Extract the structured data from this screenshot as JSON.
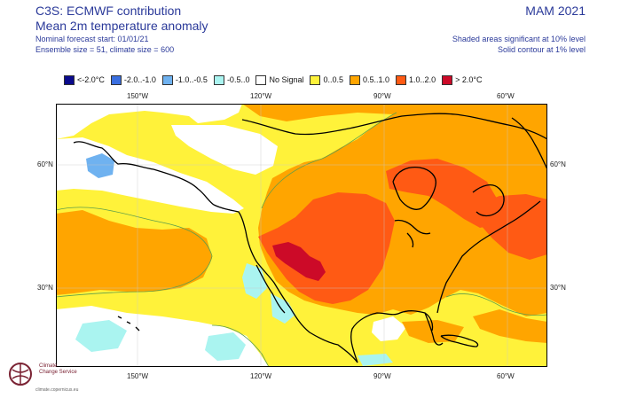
{
  "header": {
    "title_line1": "C3S: ECMWF contribution",
    "title_line2": "Mean 2m temperature anomaly",
    "forecast_start": "Nominal forecast start: 01/01/21",
    "ensemble": "Ensemble size = 51, climate size = 600",
    "season": "MAM 2021",
    "shading_note": "Shaded areas significant at 10% level",
    "contour_note": "Solid contour at 1% level"
  },
  "legend": [
    {
      "label": "<-2.0°C",
      "color": "#0a0a8c"
    },
    {
      "label": "-2.0..-1.0",
      "color": "#3a6fe0"
    },
    {
      "label": "-1.0..-0.5",
      "color": "#6fb2f0"
    },
    {
      "label": "-0.5..0",
      "color": "#aaf4f0"
    },
    {
      "label": "No Signal",
      "color": "#ffffff"
    },
    {
      "label": "0..0.5",
      "color": "#fff23a"
    },
    {
      "label": "0.5..1.0",
      "color": "#ffa500"
    },
    {
      "label": "1.0..2.0",
      "color": "#ff5a14"
    },
    {
      "label": "> 2.0°C",
      "color": "#cc0a28"
    }
  ],
  "axes": {
    "lon_ticks": [
      "150°W",
      "120°W",
      "90°W",
      "60°W"
    ],
    "lat_ticks": [
      "60°N",
      "30°N"
    ]
  },
  "logo": {
    "line1": "Climate",
    "line2": "Change Service",
    "url": "climate.copernicus.eu"
  }
}
